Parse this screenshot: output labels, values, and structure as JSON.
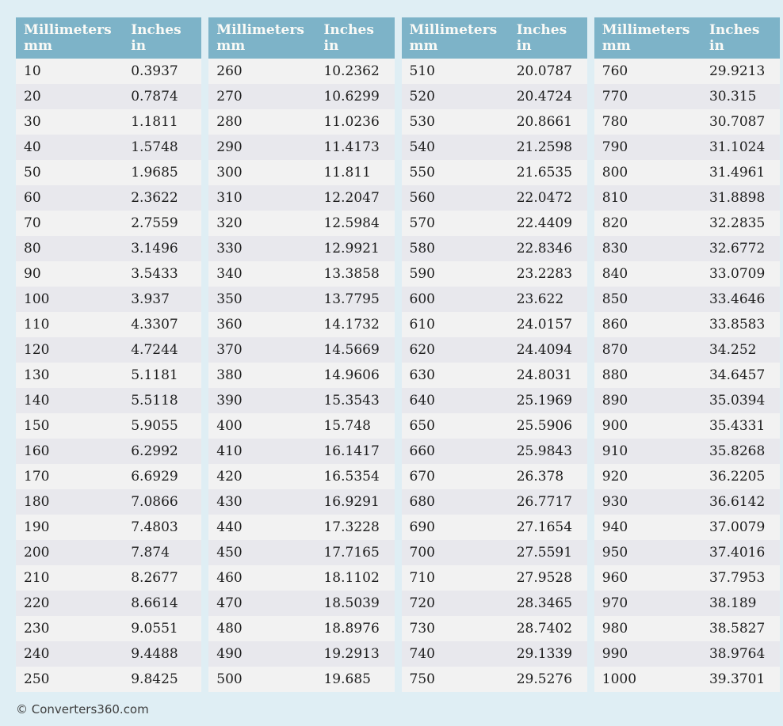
{
  "page": {
    "background": "#dfeef4",
    "footer_text": "© Converters360.com"
  },
  "colors": {
    "header_bg": "#7db3c8",
    "header_text": "#fafaf6",
    "row_odd_bg": "#f2f2f2",
    "row_even_bg": "#e8e8ed",
    "row_text": "#1d1d1d"
  },
  "table_header": {
    "col1_line1": "Millimeters",
    "col1_line2": "mm",
    "col2_line1": "Inches",
    "col2_line2": "in"
  },
  "chart_data": {
    "type": "table",
    "columns": [
      "Millimeters mm",
      "Inches in"
    ],
    "tables": [
      {
        "rows": [
          [
            "10",
            "0.3937"
          ],
          [
            "20",
            "0.7874"
          ],
          [
            "30",
            "1.1811"
          ],
          [
            "40",
            "1.5748"
          ],
          [
            "50",
            "1.9685"
          ],
          [
            "60",
            "2.3622"
          ],
          [
            "70",
            "2.7559"
          ],
          [
            "80",
            "3.1496"
          ],
          [
            "90",
            "3.5433"
          ],
          [
            "100",
            "3.937"
          ],
          [
            "110",
            "4.3307"
          ],
          [
            "120",
            "4.7244"
          ],
          [
            "130",
            "5.1181"
          ],
          [
            "140",
            "5.5118"
          ],
          [
            "150",
            "5.9055"
          ],
          [
            "160",
            "6.2992"
          ],
          [
            "170",
            "6.6929"
          ],
          [
            "180",
            "7.0866"
          ],
          [
            "190",
            "7.4803"
          ],
          [
            "200",
            "7.874"
          ],
          [
            "210",
            "8.2677"
          ],
          [
            "220",
            "8.6614"
          ],
          [
            "230",
            "9.0551"
          ],
          [
            "240",
            "9.4488"
          ],
          [
            "250",
            "9.8425"
          ]
        ]
      },
      {
        "rows": [
          [
            "260",
            "10.2362"
          ],
          [
            "270",
            "10.6299"
          ],
          [
            "280",
            "11.0236"
          ],
          [
            "290",
            "11.4173"
          ],
          [
            "300",
            "11.811"
          ],
          [
            "310",
            "12.2047"
          ],
          [
            "320",
            "12.5984"
          ],
          [
            "330",
            "12.9921"
          ],
          [
            "340",
            "13.3858"
          ],
          [
            "350",
            "13.7795"
          ],
          [
            "360",
            "14.1732"
          ],
          [
            "370",
            "14.5669"
          ],
          [
            "380",
            "14.9606"
          ],
          [
            "390",
            "15.3543"
          ],
          [
            "400",
            "15.748"
          ],
          [
            "410",
            "16.1417"
          ],
          [
            "420",
            "16.5354"
          ],
          [
            "430",
            "16.9291"
          ],
          [
            "440",
            "17.3228"
          ],
          [
            "450",
            "17.7165"
          ],
          [
            "460",
            "18.1102"
          ],
          [
            "470",
            "18.5039"
          ],
          [
            "480",
            "18.8976"
          ],
          [
            "490",
            "19.2913"
          ],
          [
            "500",
            "19.685"
          ]
        ]
      },
      {
        "rows": [
          [
            "510",
            "20.0787"
          ],
          [
            "520",
            "20.4724"
          ],
          [
            "530",
            "20.8661"
          ],
          [
            "540",
            "21.2598"
          ],
          [
            "550",
            "21.6535"
          ],
          [
            "560",
            "22.0472"
          ],
          [
            "570",
            "22.4409"
          ],
          [
            "580",
            "22.8346"
          ],
          [
            "590",
            "23.2283"
          ],
          [
            "600",
            "23.622"
          ],
          [
            "610",
            "24.0157"
          ],
          [
            "620",
            "24.4094"
          ],
          [
            "630",
            "24.8031"
          ],
          [
            "640",
            "25.1969"
          ],
          [
            "650",
            "25.5906"
          ],
          [
            "660",
            "25.9843"
          ],
          [
            "670",
            "26.378"
          ],
          [
            "680",
            "26.7717"
          ],
          [
            "690",
            "27.1654"
          ],
          [
            "700",
            "27.5591"
          ],
          [
            "710",
            "27.9528"
          ],
          [
            "720",
            "28.3465"
          ],
          [
            "730",
            "28.7402"
          ],
          [
            "740",
            "29.1339"
          ],
          [
            "750",
            "29.5276"
          ]
        ]
      },
      {
        "rows": [
          [
            "760",
            "29.9213"
          ],
          [
            "770",
            "30.315"
          ],
          [
            "780",
            "30.7087"
          ],
          [
            "790",
            "31.1024"
          ],
          [
            "800",
            "31.4961"
          ],
          [
            "810",
            "31.8898"
          ],
          [
            "820",
            "32.2835"
          ],
          [
            "830",
            "32.6772"
          ],
          [
            "840",
            "33.0709"
          ],
          [
            "850",
            "33.4646"
          ],
          [
            "860",
            "33.8583"
          ],
          [
            "870",
            "34.252"
          ],
          [
            "880",
            "34.6457"
          ],
          [
            "890",
            "35.0394"
          ],
          [
            "900",
            "35.4331"
          ],
          [
            "910",
            "35.8268"
          ],
          [
            "920",
            "36.2205"
          ],
          [
            "930",
            "36.6142"
          ],
          [
            "940",
            "37.0079"
          ],
          [
            "950",
            "37.4016"
          ],
          [
            "960",
            "37.7953"
          ],
          [
            "970",
            "38.189"
          ],
          [
            "980",
            "38.5827"
          ],
          [
            "990",
            "38.9764"
          ],
          [
            "1000",
            "39.3701"
          ]
        ]
      }
    ]
  }
}
